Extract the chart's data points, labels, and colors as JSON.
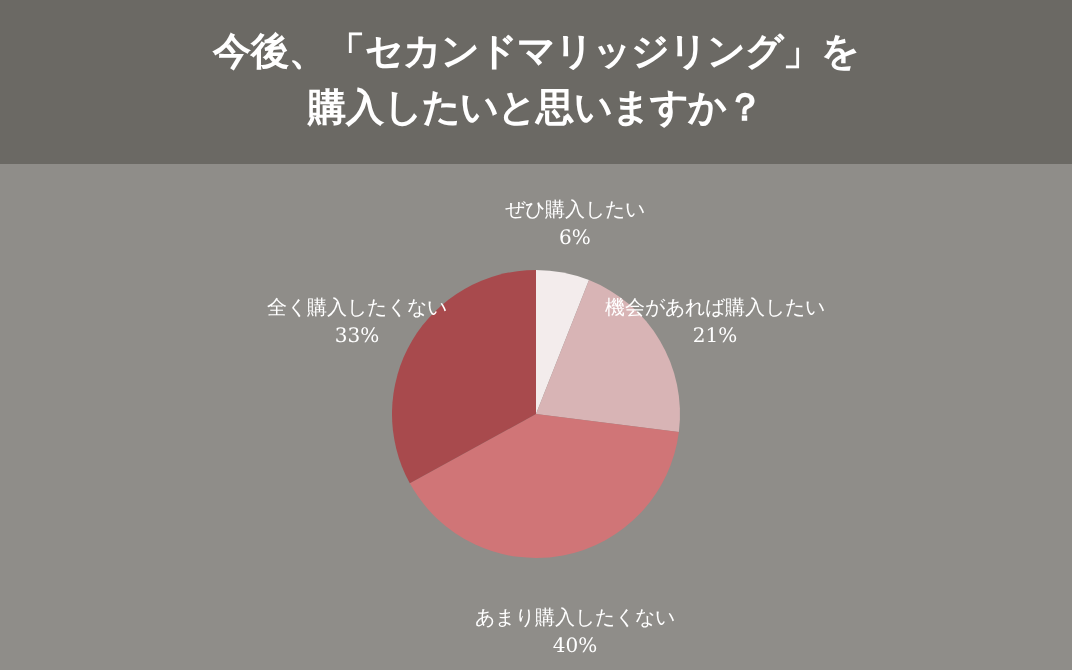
{
  "chart_data": {
    "type": "pie",
    "title": "今後、「セカンドマリッジリング」を購入したいと思いますか？",
    "categories": [
      "ぜひ購入したい",
      "機会があれば購入したい",
      "あまり購入したくない",
      "全く購入したくない"
    ],
    "values": [
      6,
      21,
      40,
      33
    ],
    "value_labels": [
      "6%",
      "21%",
      "40%",
      "33%"
    ],
    "colors": [
      "#f3ecec",
      "#d8b4b5",
      "#d07577",
      "#a84a4d"
    ]
  }
}
